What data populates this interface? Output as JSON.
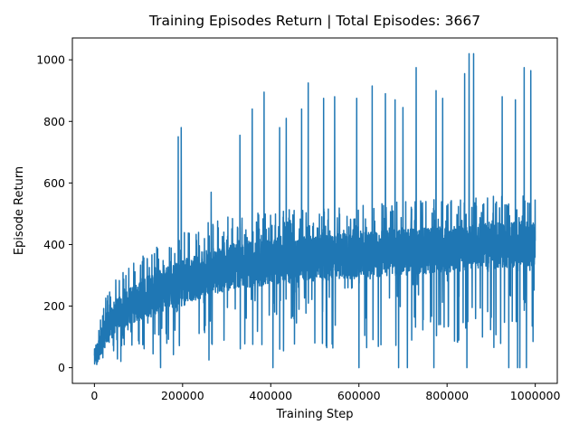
{
  "chart_data": {
    "type": "line",
    "title": "Training Episodes Return | Total Episodes: 3667",
    "xlabel": "Training Step",
    "ylabel": "Episode Return",
    "xlim": [
      -50000,
      1050000
    ],
    "ylim": [
      -51,
      1071
    ],
    "x_ticks": [
      0,
      200000,
      400000,
      600000,
      800000,
      1000000
    ],
    "y_ticks": [
      0,
      200,
      400,
      600,
      800,
      1000
    ],
    "grid": false,
    "legend": "none",
    "colors": {
      "line": "#1f77b4",
      "axes": "#000000"
    },
    "series": [
      {
        "x_start": 0,
        "x_end": 1000000,
        "n_points": 3667,
        "envelope": {
          "x": [
            0,
            20000,
            50000,
            100000,
            150000,
            200000,
            250000,
            300000,
            400000,
            500000,
            600000,
            700000,
            800000,
            900000,
            1000000
          ],
          "low": [
            0,
            50,
            120,
            150,
            180,
            200,
            230,
            250,
            270,
            280,
            290,
            300,
            310,
            320,
            330
          ],
          "high": [
            60,
            150,
            230,
            280,
            320,
            350,
            380,
            400,
            420,
            430,
            440,
            450,
            460,
            470,
            480
          ]
        },
        "spikes": [
          {
            "x": 190000,
            "y": 750
          },
          {
            "x": 197000,
            "y": 780
          },
          {
            "x": 265000,
            "y": 570
          },
          {
            "x": 330000,
            "y": 755
          },
          {
            "x": 358000,
            "y": 840
          },
          {
            "x": 385000,
            "y": 895
          },
          {
            "x": 420000,
            "y": 780
          },
          {
            "x": 435000,
            "y": 810
          },
          {
            "x": 470000,
            "y": 840
          },
          {
            "x": 485000,
            "y": 925
          },
          {
            "x": 520000,
            "y": 875
          },
          {
            "x": 545000,
            "y": 880
          },
          {
            "x": 595000,
            "y": 875
          },
          {
            "x": 630000,
            "y": 915
          },
          {
            "x": 660000,
            "y": 890
          },
          {
            "x": 682000,
            "y": 870
          },
          {
            "x": 700000,
            "y": 845
          },
          {
            "x": 730000,
            "y": 975
          },
          {
            "x": 775000,
            "y": 900
          },
          {
            "x": 790000,
            "y": 875
          },
          {
            "x": 840000,
            "y": 955
          },
          {
            "x": 850000,
            "y": 1020
          },
          {
            "x": 860000,
            "y": 1020
          },
          {
            "x": 925000,
            "y": 880
          },
          {
            "x": 955000,
            "y": 870
          },
          {
            "x": 975000,
            "y": 975
          },
          {
            "x": 990000,
            "y": 965
          }
        ],
        "dips": [
          {
            "x": 60000,
            "y": 20
          },
          {
            "x": 150000,
            "y": 0
          },
          {
            "x": 260000,
            "y": 25
          },
          {
            "x": 380000,
            "y": 75
          },
          {
            "x": 405000,
            "y": 0
          },
          {
            "x": 500000,
            "y": 80
          },
          {
            "x": 600000,
            "y": 0
          },
          {
            "x": 690000,
            "y": 0
          },
          {
            "x": 710000,
            "y": 0
          },
          {
            "x": 770000,
            "y": 0
          },
          {
            "x": 845000,
            "y": 0
          },
          {
            "x": 940000,
            "y": 0
          },
          {
            "x": 960000,
            "y": 0
          },
          {
            "x": 965000,
            "y": 0
          },
          {
            "x": 980000,
            "y": 0
          }
        ]
      }
    ]
  }
}
